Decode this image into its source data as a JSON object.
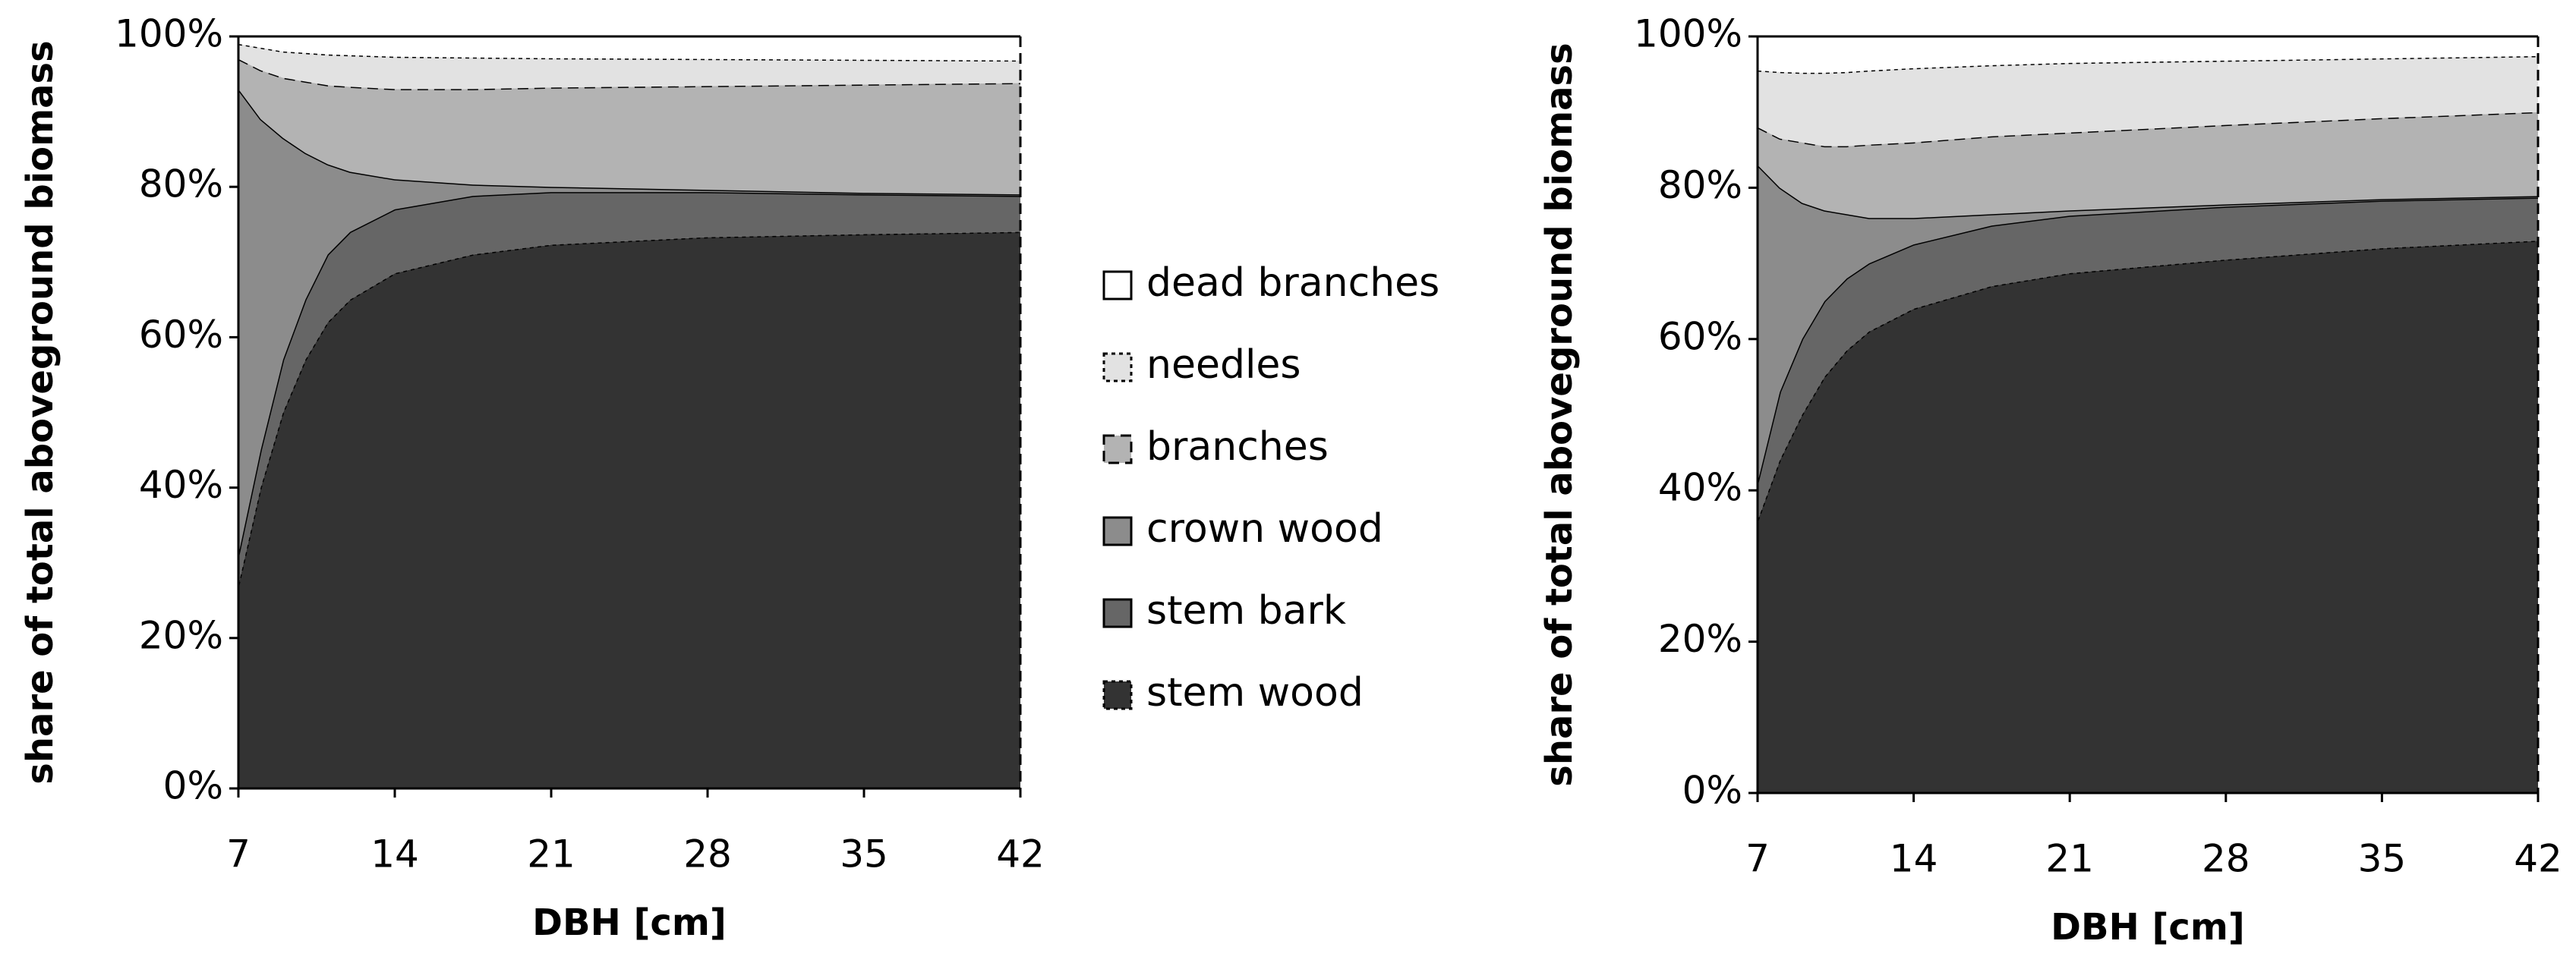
{
  "chart_data": [
    {
      "type": "area",
      "stacked": true,
      "x": [
        7,
        8,
        9,
        10,
        11,
        12,
        14,
        17.5,
        21,
        28,
        35,
        42
      ],
      "x_label": "DBH [cm]",
      "y_label": "share of total aboveground biomass",
      "xlim": [
        7,
        42
      ],
      "xticks": [
        7,
        14,
        21,
        28,
        35,
        42
      ],
      "ylim": [
        0,
        100
      ],
      "yticks": [
        {
          "value": 0,
          "label": "0%"
        },
        {
          "value": 20,
          "label": "20%"
        },
        {
          "value": 40,
          "label": "40%"
        },
        {
          "value": 60,
          "label": "60%"
        },
        {
          "value": 80,
          "label": "80%"
        },
        {
          "value": 100,
          "label": "100%"
        }
      ],
      "series": [
        {
          "name": "stem wood",
          "color": "#333333",
          "line": "dotted",
          "values": [
            27,
            40,
            50,
            57,
            62,
            65,
            68.5,
            71,
            72.3,
            73.3,
            73.7,
            74
          ]
        },
        {
          "name": "stem bark",
          "color": "#666666",
          "line": "solid",
          "values": [
            4,
            5,
            7,
            8,
            9,
            9,
            8.5,
            7.8,
            7,
            6,
            5.3,
            4.8
          ]
        },
        {
          "name": "crown wood",
          "color": "#8c8c8c",
          "line": "solid",
          "values": [
            62,
            44,
            29.5,
            19.5,
            12,
            8,
            4,
            1.5,
            0.7,
            0.3,
            0.2,
            0.2
          ]
        },
        {
          "name": "branches",
          "color": "#b3b3b3",
          "line": "dashed",
          "values": [
            4,
            6.5,
            8,
            9.5,
            10.5,
            11.3,
            12,
            12.7,
            13.2,
            13.8,
            14.4,
            14.8
          ]
        },
        {
          "name": "needles",
          "color": "#e2e2e2",
          "line": "dotted",
          "values": [
            2,
            3,
            3.5,
            3.8,
            4.1,
            4.2,
            4.3,
            4.2,
            3.9,
            3.6,
            3.3,
            3
          ]
        },
        {
          "name": "dead branches",
          "color": "#ffffff",
          "line": "solid",
          "values": [
            1,
            1.5,
            2,
            2.2,
            2.4,
            2.5,
            2.7,
            2.8,
            2.9,
            3,
            3.1,
            3.2
          ]
        }
      ]
    },
    {
      "type": "area",
      "stacked": true,
      "x": [
        7,
        8,
        9,
        10,
        11,
        12,
        14,
        17.5,
        21,
        28,
        35,
        42
      ],
      "x_label": "DBH [cm]",
      "y_label": "share of total aboveground biomass",
      "xlim": [
        7,
        42
      ],
      "xticks": [
        7,
        14,
        21,
        28,
        35,
        42
      ],
      "ylim": [
        0,
        100
      ],
      "yticks": [
        {
          "value": 0,
          "label": "0%"
        },
        {
          "value": 20,
          "label": "20%"
        },
        {
          "value": 40,
          "label": "40%"
        },
        {
          "value": 60,
          "label": "60%"
        },
        {
          "value": 80,
          "label": "80%"
        },
        {
          "value": 100,
          "label": "100%"
        }
      ],
      "series": [
        {
          "name": "stem wood",
          "color": "#333333",
          "line": "dotted",
          "values": [
            36,
            44,
            50,
            55,
            58.5,
            61,
            64,
            67,
            68.7,
            70.5,
            72,
            73
          ]
        },
        {
          "name": "stem bark",
          "color": "#666666",
          "line": "solid",
          "values": [
            5,
            9,
            10,
            10,
            9.5,
            9,
            8.5,
            8,
            7.6,
            7,
            6.3,
            5.7
          ]
        },
        {
          "name": "crown wood",
          "color": "#8c8c8c",
          "line": "solid",
          "values": [
            42,
            27,
            18,
            12,
            8.5,
            6,
            3.5,
            1.5,
            0.7,
            0.3,
            0.2,
            0.2
          ]
        },
        {
          "name": "branches",
          "color": "#b3b3b3",
          "line": "dashed",
          "values": [
            5,
            6.5,
            8,
            8.5,
            9,
            9.7,
            10,
            10.3,
            10.3,
            10.5,
            10.7,
            11.1
          ]
        },
        {
          "name": "needles",
          "color": "#e2e2e2",
          "line": "dotted",
          "values": [
            7.5,
            8.8,
            9.2,
            9.7,
            9.8,
            9.8,
            9.8,
            9.4,
            9.2,
            8.5,
            7.9,
            7.4
          ]
        },
        {
          "name": "dead branches",
          "color": "#ffffff",
          "line": "solid",
          "values": [
            4.5,
            4.7,
            4.8,
            4.8,
            4.7,
            4.5,
            4.2,
            3.8,
            3.5,
            3.2,
            2.9,
            2.6
          ]
        }
      ]
    }
  ]
}
